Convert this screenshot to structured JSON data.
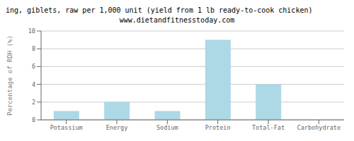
{
  "chart_data": {
    "type": "bar",
    "title": "ing, giblets, raw per 1,000 unit (yield from 1 lb ready-to-cook chicken)",
    "subtitle": "www.dietandfitnesstoday.com",
    "categories": [
      "Potassium",
      "Energy",
      "Sodium",
      "Protein",
      "Total-Fat",
      "Carbohydrate"
    ],
    "values": [
      1.0,
      2.0,
      1.0,
      9.0,
      4.0,
      0.0
    ],
    "color": "#add8e6",
    "ylabel": "Percentage of RDH (%)",
    "ylim": [
      0,
      10
    ],
    "yticks": [
      0,
      2,
      4,
      6,
      8,
      10
    ],
    "grid": true
  }
}
